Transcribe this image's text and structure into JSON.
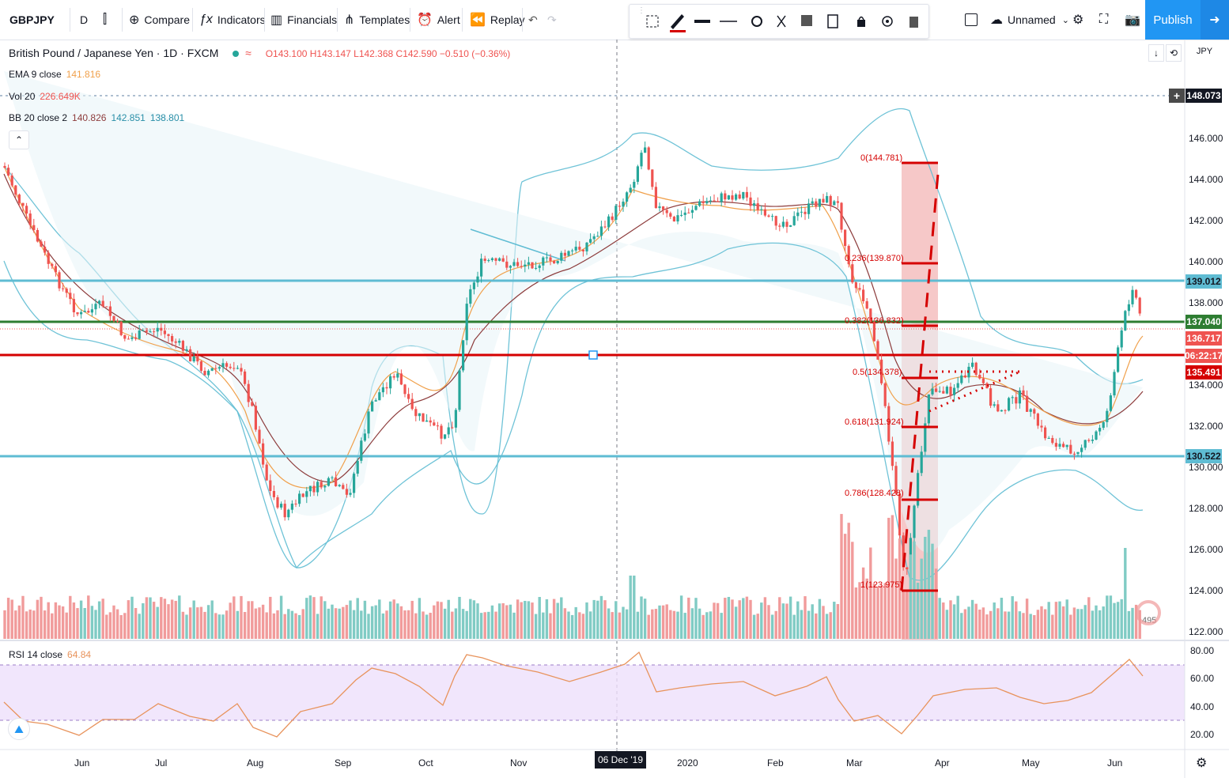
{
  "toolbar": {
    "symbol": "GBPJPY",
    "interval": "D",
    "compare": "Compare",
    "indicators": "Indicators",
    "financials": "Financials",
    "templates": "Templates",
    "alert": "Alert",
    "replay": "Replay",
    "layout_name": "Unnamed",
    "publish": "Publish"
  },
  "legend": {
    "title": "British Pound / Japanese Yen · 1D · FXCM",
    "ohlc": "O143.100 H143.147 L142.368 C142.590 −0.510 (−0.36%)",
    "ema_label": "EMA 9 close",
    "ema_value": "141.816",
    "vol_label": "Vol 20",
    "vol_value": "226.649K",
    "bb_label": "BB 20 close 2",
    "bb_v1": "140.826",
    "bb_v2": "142.851",
    "bb_v3": "138.801"
  },
  "price_axis": {
    "currency": "JPY",
    "ticks": [
      "146.000",
      "144.000",
      "142.000",
      "140.000",
      "138.000",
      "134.000",
      "132.000",
      "130.000",
      "128.000",
      "126.000",
      "124.000",
      "122.000"
    ],
    "tags": {
      "crosshair": "148.073",
      "level_top": "139.012",
      "level_green": "137.040",
      "last_price": "136.717",
      "countdown": "06:22:17",
      "level_red": "135.491",
      "level_bottom": "130.522"
    },
    "colors": {
      "cyan": "#5fbcd3",
      "green": "#2e7d32",
      "red": "#d50000",
      "last": "#ef5350"
    }
  },
  "fib_labels": [
    "0(144.781)",
    "0.236(139.870)",
    "0.382(136.832)",
    "0.5(134.378)",
    "0.618(131.924)",
    "0.786(128.428)",
    "1(123.975)"
  ],
  "rsi": {
    "label": "RSI 14 close",
    "value": "64.84",
    "ticks": [
      "80.00",
      "60.00",
      "40.00",
      "20.00"
    ]
  },
  "time_axis": [
    "Jun",
    "Jul",
    "Aug",
    "Sep",
    "Oct",
    "Nov",
    "06 Dec '19",
    "2020",
    "Feb",
    "Mar",
    "Apr",
    "May",
    "Jun"
  ],
  "watermark": "495"
}
